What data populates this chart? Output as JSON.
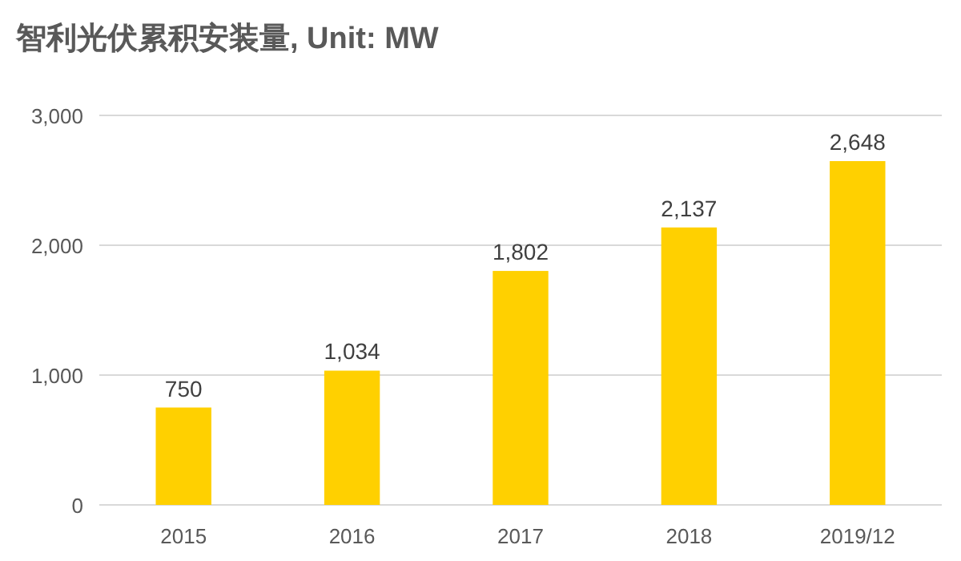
{
  "chart_data": {
    "type": "bar",
    "title": "智利光伏累积安装量, Unit: MW",
    "categories": [
      "2015",
      "2016",
      "2017",
      "2018",
      "2019/12"
    ],
    "values": [
      750,
      1034,
      1802,
      2137,
      2648
    ],
    "value_labels": [
      "750",
      "1,034",
      "1,802",
      "2,137",
      "2,648"
    ],
    "color": "#ffd000",
    "ylim": [
      0,
      3000
    ],
    "yticks": [
      {
        "value": 0,
        "label": "0"
      },
      {
        "value": 1000,
        "label": "1,000"
      },
      {
        "value": 2000,
        "label": "2,000"
      },
      {
        "value": 3000,
        "label": "3,000"
      }
    ],
    "grid": "y"
  }
}
